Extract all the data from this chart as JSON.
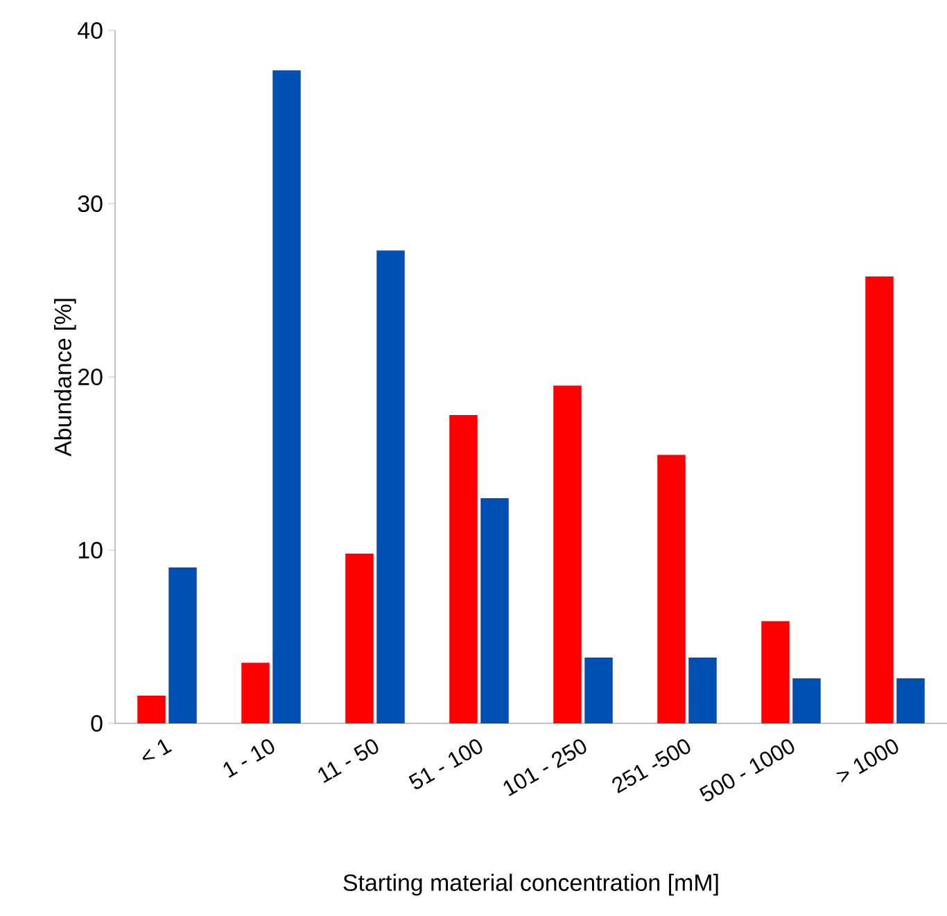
{
  "chart_data": {
    "type": "bar",
    "xlabel": "Starting material concentration [mM]",
    "ylabel": "Abundance [%]",
    "categories": [
      "< 1",
      "1 - 10",
      "11 - 50",
      "51 - 100",
      "101 - 250",
      "251 -500",
      "500 - 1000",
      "> 1000"
    ],
    "series": [
      {
        "color": "#ff0000",
        "values": [
          1.6,
          3.5,
          9.8,
          17.8,
          19.5,
          15.5,
          5.9,
          25.8
        ]
      },
      {
        "color": "#0050b4",
        "values": [
          9.0,
          37.7,
          27.3,
          13.0,
          3.8,
          3.8,
          2.6,
          2.6
        ]
      }
    ],
    "ylim": [
      0,
      40
    ],
    "yticks": [
      0,
      10,
      20,
      30,
      40
    ]
  }
}
